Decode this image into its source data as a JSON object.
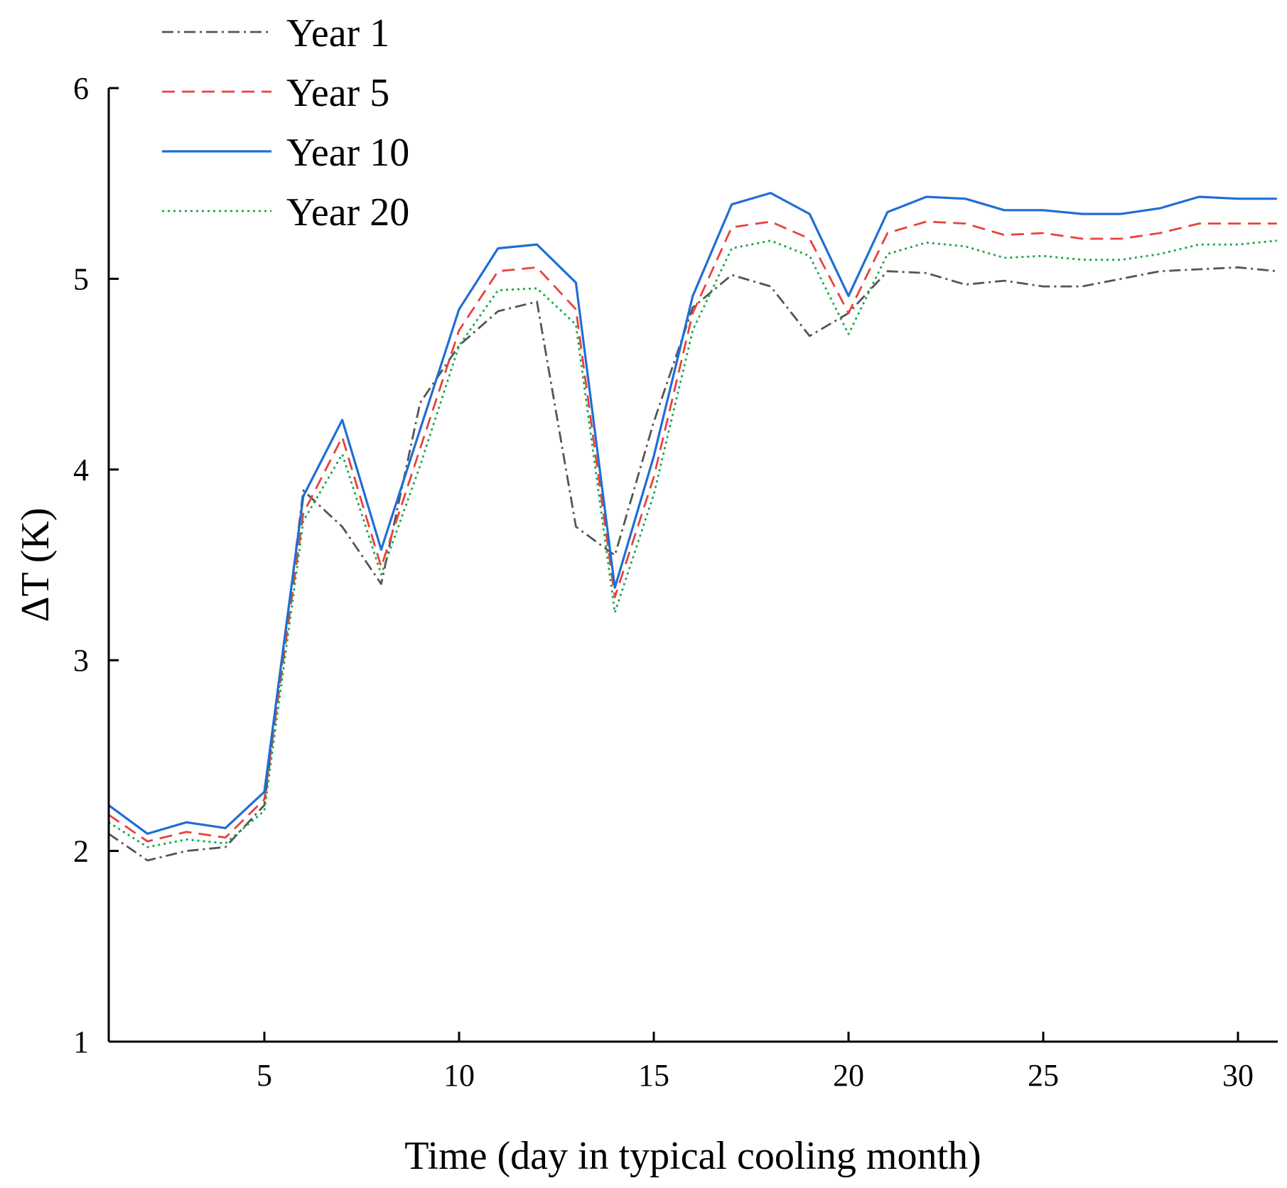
{
  "chart_data": {
    "type": "line",
    "title": "",
    "xlabel": "Time (day in typical cooling month)",
    "ylabel": "ΔT (K)",
    "xlim": [
      1,
      31
    ],
    "ylim": [
      1,
      6
    ],
    "xticks": [
      5,
      10,
      15,
      20,
      25,
      30
    ],
    "yticks": [
      1,
      2,
      3,
      4,
      5,
      6
    ],
    "grid": false,
    "legend_position": "top-left",
    "x": [
      1,
      2,
      3,
      4,
      5,
      6,
      7,
      8,
      9,
      10,
      11,
      12,
      13,
      14,
      15,
      16,
      17,
      18,
      19,
      20,
      21,
      22,
      23,
      24,
      25,
      26,
      27,
      28,
      29,
      30,
      31
    ],
    "series": [
      {
        "name": "Year 1",
        "color": "#555555",
        "style": "dashdot",
        "values": [
          2.09,
          1.95,
          2.0,
          2.02,
          2.24,
          3.89,
          3.7,
          3.4,
          4.35,
          4.65,
          4.83,
          4.88,
          3.7,
          3.55,
          4.25,
          4.85,
          5.02,
          4.96,
          4.7,
          4.82,
          5.04,
          5.03,
          4.97,
          4.99,
          4.96,
          4.96,
          5.0,
          5.04,
          5.05,
          5.06,
          5.04
        ]
      },
      {
        "name": "Year 5",
        "color": "#e8423c",
        "style": "dashed",
        "values": [
          2.19,
          2.05,
          2.1,
          2.07,
          2.27,
          3.77,
          4.17,
          3.49,
          4.11,
          4.73,
          5.04,
          5.06,
          4.84,
          3.33,
          3.96,
          4.82,
          5.27,
          5.3,
          5.21,
          4.82,
          5.24,
          5.3,
          5.29,
          5.23,
          5.24,
          5.21,
          5.21,
          5.24,
          5.29,
          5.29,
          5.29
        ]
      },
      {
        "name": "Year 10",
        "color": "#1f6ed4",
        "style": "solid",
        "values": [
          2.24,
          2.09,
          2.15,
          2.12,
          2.31,
          3.86,
          4.26,
          3.58,
          4.21,
          4.84,
          5.16,
          5.18,
          4.98,
          3.38,
          4.07,
          4.91,
          5.39,
          5.45,
          5.34,
          4.91,
          5.35,
          5.43,
          5.42,
          5.36,
          5.36,
          5.34,
          5.34,
          5.37,
          5.43,
          5.42,
          5.42
        ]
      },
      {
        "name": "Year 20",
        "color": "#1aa64b",
        "style": "dotted",
        "values": [
          2.15,
          2.02,
          2.06,
          2.04,
          2.21,
          3.73,
          4.08,
          3.45,
          4.02,
          4.65,
          4.94,
          4.95,
          4.76,
          3.25,
          3.87,
          4.73,
          5.16,
          5.2,
          5.12,
          4.71,
          5.13,
          5.19,
          5.17,
          5.11,
          5.12,
          5.1,
          5.1,
          5.13,
          5.18,
          5.18,
          5.2
        ]
      }
    ]
  }
}
